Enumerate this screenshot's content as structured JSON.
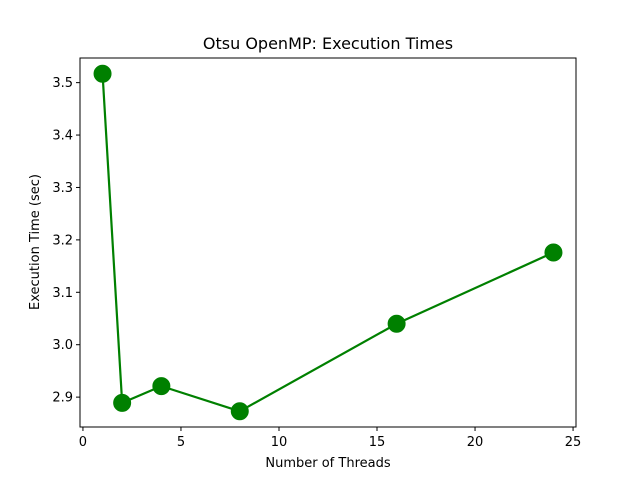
{
  "chart_data": {
    "type": "line",
    "title": "Otsu OpenMP: Execution Times",
    "xlabel": "Number of Threads",
    "ylabel": "Execution Time (sec)",
    "xlim": [
      -0.15,
      25.15
    ],
    "ylim": [
      2.843,
      3.547
    ],
    "xticks": [
      0,
      5,
      10,
      15,
      20,
      25
    ],
    "xtick_labels": [
      "0",
      "5",
      "10",
      "15",
      "20",
      "25"
    ],
    "yticks": [
      2.9,
      3.0,
      3.1,
      3.2,
      3.3,
      3.4,
      3.5
    ],
    "ytick_labels": [
      "2.9",
      "3.0",
      "3.1",
      "3.2",
      "3.3",
      "3.4",
      "3.5"
    ],
    "grid": false,
    "legend": false,
    "series": [
      {
        "color": "#008000",
        "marker": "circle",
        "x": [
          1,
          2,
          4,
          8,
          16,
          24
        ],
        "y": [
          3.517,
          2.889,
          2.921,
          2.873,
          3.04,
          3.176
        ]
      }
    ]
  }
}
